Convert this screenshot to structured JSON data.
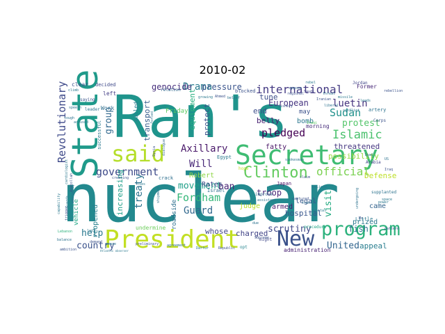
{
  "chart_data": {
    "type": "wordcloud",
    "title": "2010-02",
    "background": "#ffffff",
    "colormap": "viridis",
    "words": [
      {
        "text": "nuclear",
        "color": "#23898e"
      },
      {
        "text": "Ran's",
        "color": "#1f948c"
      },
      {
        "text": "State",
        "color": "#1f9a8a"
      },
      {
        "text": "Secretary",
        "color": "#3fbc73"
      },
      {
        "text": "President",
        "color": "#c2df23"
      },
      {
        "text": "said",
        "color": "#b5de2b"
      },
      {
        "text": "New",
        "color": "#3b528b"
      },
      {
        "text": "program",
        "color": "#2db27d"
      },
      {
        "text": "Clinton",
        "color": "#63cb5f"
      },
      {
        "text": "government",
        "color": "#3e4a89"
      },
      {
        "text": "Revolutionary",
        "color": "#3e4989"
      },
      {
        "text": "international",
        "color": "#443a83"
      },
      {
        "text": "Islamic",
        "color": "#4ac16d"
      },
      {
        "text": "Axillary",
        "color": "#481769"
      },
      {
        "text": "official",
        "color": "#7ad151"
      },
      {
        "text": "Fordham",
        "color": "#35b779"
      },
      {
        "text": "Drama",
        "color": "#297b8e"
      },
      {
        "text": "Guard",
        "color": "#31688e"
      },
      {
        "text": "movement",
        "color": "#1f9f88"
      },
      {
        "text": "pledged",
        "color": "#440154"
      },
      {
        "text": "treaty",
        "color": "#2c728e"
      },
      {
        "text": "Sudan",
        "color": "#21918c"
      },
      {
        "text": "protest",
        "color": "#52c569"
      },
      {
        "text": "luetin",
        "color": "#46337e"
      },
      {
        "text": "country",
        "color": "#3b528b"
      },
      {
        "text": "United",
        "color": "#32658e"
      },
      {
        "text": "visit",
        "color": "#25ab82"
      },
      {
        "text": "Will",
        "color": "#482878"
      },
      {
        "text": "group",
        "color": "#31688e"
      },
      {
        "text": "pressure",
        "color": "#3a548c"
      },
      {
        "text": "genocide",
        "color": "#472f7d"
      },
      {
        "text": "European",
        "color": "#463480"
      },
      {
        "text": "threatened",
        "color": "#453781"
      },
      {
        "text": "ban",
        "color": "#482475"
      },
      {
        "text": "help",
        "color": "#2a788e"
      },
      {
        "text": "fish",
        "color": "#2c728e"
      },
      {
        "text": "scrutiny",
        "color": "#3f4788"
      },
      {
        "text": "troop",
        "color": "#482677"
      },
      {
        "text": "charged",
        "color": "#414487"
      },
      {
        "text": "hospital",
        "color": "#39568c"
      },
      {
        "text": "increasing",
        "color": "#1f9e89"
      },
      {
        "text": "possibility",
        "color": "#95d840"
      },
      {
        "text": "equipment",
        "color": "#29af7f"
      },
      {
        "text": "transport",
        "color": "#365d8d"
      },
      {
        "text": "protect",
        "color": "#3b528b"
      },
      {
        "text": "Defense",
        "color": "#bddf26"
      },
      {
        "text": "appeal",
        "color": "#287d8e"
      },
      {
        "text": "prized",
        "color": "#2a788e"
      },
      {
        "text": "came",
        "color": "#33638d"
      },
      {
        "text": "whose",
        "color": "#404688"
      },
      {
        "text": "reopened",
        "color": "#26818e"
      },
      {
        "text": "tune",
        "color": "#3d4e8a"
      },
      {
        "text": "end",
        "color": "#3d4d8a"
      },
      {
        "text": "belly",
        "color": "#482071"
      },
      {
        "text": "bomb",
        "color": "#2a768e"
      },
      {
        "text": "fatty",
        "color": "#471365"
      },
      {
        "text": "Rates",
        "color": "#3e4a89"
      },
      {
        "text": "Robert",
        "color": "#8ed645"
      },
      {
        "text": "judge",
        "color": "#b8de29"
      },
      {
        "text": "armed",
        "color": "#48186a"
      },
      {
        "text": "legal",
        "color": "#38588c"
      },
      {
        "text": "vehicle",
        "color": "#22a785"
      },
      {
        "text": "roadside",
        "color": "#2d708e"
      },
      {
        "text": "administration",
        "color": "#482173"
      },
      {
        "text": "Friday",
        "color": "#5ec962"
      },
      {
        "text": "undermine",
        "color": "#6ccd5a"
      },
      {
        "text": "Work",
        "color": "#2e6e8e"
      },
      {
        "text": "called",
        "color": "#287c8e"
      },
      {
        "text": "left",
        "color": "#433e85"
      },
      {
        "text": "may",
        "color": "#3b518b"
      },
      {
        "text": "morning",
        "color": "#472d7b"
      },
      {
        "text": "successful",
        "color": "#2a788e"
      },
      {
        "text": "Japan",
        "color": "#471063"
      },
      {
        "text": "blocked",
        "color": "#3b528b"
      },
      {
        "text": "Former",
        "color": "#482878"
      },
      {
        "text": "artery",
        "color": "#2c728e"
      },
      {
        "text": "clear",
        "color": "#3b528b"
      },
      {
        "text": "decided",
        "color": "#3e4989"
      },
      {
        "text": "Little",
        "color": "#2a788e"
      },
      {
        "text": "crack",
        "color": "#2e6f8e"
      },
      {
        "text": "Egypt",
        "color": "#2a788e"
      },
      {
        "text": "Israel",
        "color": "#2d718e"
      },
      {
        "text": "improve",
        "color": "#2f6b8e"
      },
      {
        "text": "ambition",
        "color": "#3b528b"
      },
      {
        "text": "might",
        "color": "#3f4788"
      },
      {
        "text": "opt",
        "color": "#25848e"
      },
      {
        "text": "Lebanon",
        "color": "#2db27d"
      },
      {
        "text": "procedure",
        "color": "#21a685"
      },
      {
        "text": "supplanted",
        "color": "#2c728e"
      },
      {
        "text": "relation",
        "color": "#31688e"
      },
      {
        "text": "saying",
        "color": "#3a548c"
      },
      {
        "text": "leader",
        "color": "#2c728e"
      },
      {
        "text": "Jordan",
        "color": "#404588"
      },
      {
        "text": "Arabia",
        "color": "#414287"
      },
      {
        "text": "Corps",
        "color": "#3b528b"
      },
      {
        "text": "climb",
        "color": "#2a788e"
      },
      {
        "text": "speech",
        "color": "#2c728e"
      },
      {
        "text": "peace",
        "color": "#2a788e"
      },
      {
        "text": "Iraq",
        "color": "#3b528b"
      },
      {
        "text": "tough",
        "color": "#2c728e"
      },
      {
        "text": "accused",
        "color": "#2a788e"
      },
      {
        "text": "oppose",
        "color": "#31688e"
      },
      {
        "text": "regional",
        "color": "#3b528b"
      },
      {
        "text": "Saudi",
        "color": "#414487"
      },
      {
        "text": "Iraqi",
        "color": "#5ec962"
      },
      {
        "text": "threat",
        "color": "#2c728e"
      },
      {
        "text": "missile",
        "color": "#2a788e"
      },
      {
        "text": "Syria",
        "color": "#3b528b"
      },
      {
        "text": "dialogue",
        "color": "#31688e"
      },
      {
        "text": "undergoing",
        "color": "#2c728e"
      },
      {
        "text": "believe",
        "color": "#2a788e"
      },
      {
        "text": "claim",
        "color": "#3b528b"
      },
      {
        "text": "due",
        "color": "#2c728e"
      },
      {
        "text": "pattern",
        "color": "#3b528b"
      },
      {
        "text": "Atlantic observer",
        "color": "#2a788e"
      },
      {
        "text": "preliminary",
        "color": "#3b528b"
      },
      {
        "text": "agreement",
        "color": "#2c728e"
      },
      {
        "text": "Darfur",
        "color": "#2a788e"
      },
      {
        "text": "Republic",
        "color": "#3b528b"
      },
      {
        "text": "forced",
        "color": "#2c728e"
      },
      {
        "text": "cardiologist",
        "color": "#2a788e"
      },
      {
        "text": "Ayatollah",
        "color": "#3b528b"
      },
      {
        "text": "emergency",
        "color": "#2c728e"
      },
      {
        "text": "Guards",
        "color": "#2a788e"
      },
      {
        "text": "trigger",
        "color": "#3b528b"
      },
      {
        "text": "hope",
        "color": "#bddf26"
      },
      {
        "text": "spokesman",
        "color": "#2c728e"
      },
      {
        "text": "lap",
        "color": "#2a788e"
      },
      {
        "text": "demand",
        "color": "#3b528b"
      },
      {
        "text": "balance",
        "color": "#2c728e"
      },
      {
        "text": "capability",
        "color": "#2a788e"
      },
      {
        "text": "creating",
        "color": "#3b528b"
      },
      {
        "text": "shipment",
        "color": "#2c728e"
      },
      {
        "text": "ties",
        "color": "#2a788e"
      },
      {
        "text": "Supreme",
        "color": "#3b528b"
      },
      {
        "text": "assistant",
        "color": "#2c728e"
      },
      {
        "text": "rebel",
        "color": "#2a788e"
      },
      {
        "text": "fishery",
        "color": "#3b528b"
      },
      {
        "text": "conflict",
        "color": "#2c728e"
      },
      {
        "text": "leads",
        "color": "#2a788e"
      },
      {
        "text": "captured",
        "color": "#3b528b"
      },
      {
        "text": "transit",
        "color": "#2c728e"
      },
      {
        "text": "capital",
        "color": "#2a788e"
      },
      {
        "text": "Iranian",
        "color": "#3b528b"
      },
      {
        "text": "liberal",
        "color": "#2c728e"
      },
      {
        "text": "growing",
        "color": "#2a788e"
      },
      {
        "text": "Ahmed",
        "color": "#3b528b"
      },
      {
        "text": "belief",
        "color": "#2c728e"
      },
      {
        "text": "power",
        "color": "#2a788e"
      },
      {
        "text": "US",
        "color": "#2c728e"
      },
      {
        "text": "rebellion",
        "color": "#3b528b"
      },
      {
        "text": "lead",
        "color": "#2c728e"
      },
      {
        "text": "space",
        "color": "#2a788e"
      },
      {
        "text": "Mr",
        "color": "#3b528b"
      }
    ]
  }
}
